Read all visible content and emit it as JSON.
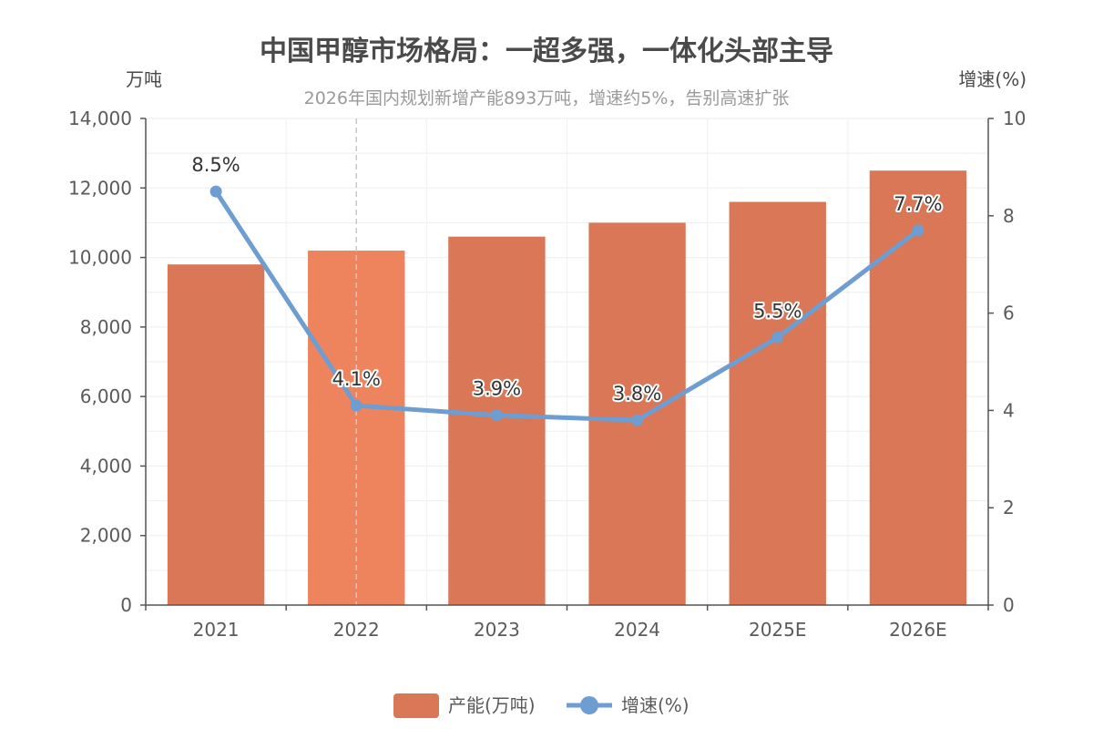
{
  "chart_data": {
    "type": "bar",
    "title": "中国甲醇市场格局：一超多强，一体化头部主导",
    "subtitle": "2026年国内规划新增产能893万吨，增速约5%，告别高速扩张",
    "categories": [
      "2021",
      "2022",
      "2023",
      "2024",
      "2025E",
      "2026E"
    ],
    "y_left": {
      "unit_label": "万吨",
      "ylim": [
        0,
        14000
      ],
      "ticks": [
        "0",
        "2,000",
        "4,000",
        "6,000",
        "8,000",
        "10,000",
        "12,000",
        "14,000"
      ]
    },
    "y_right": {
      "unit_label": "增速(%)",
      "ylim": [
        0,
        10
      ],
      "ticks": [
        "0",
        "2",
        "4",
        "6",
        "8",
        "10"
      ]
    },
    "series": [
      {
        "name": "产能(万吨)",
        "kind": "bar",
        "axis": "left",
        "color": "#d97757",
        "highlight_color": "#ee845e",
        "highlight_index": 1,
        "values": [
          9800,
          10200,
          10600,
          11000,
          11600,
          12500
        ]
      },
      {
        "name": "增速(%)",
        "kind": "line",
        "axis": "right",
        "color": "#6e9dd1",
        "values": [
          8.5,
          4.1,
          3.9,
          3.8,
          5.5,
          7.7
        ],
        "labels": [
          "8.5%",
          "4.1%",
          "3.9%",
          "3.8%",
          "5.5%",
          "7.7%"
        ]
      }
    ],
    "grid": true,
    "legend_position": "bottom-center"
  }
}
